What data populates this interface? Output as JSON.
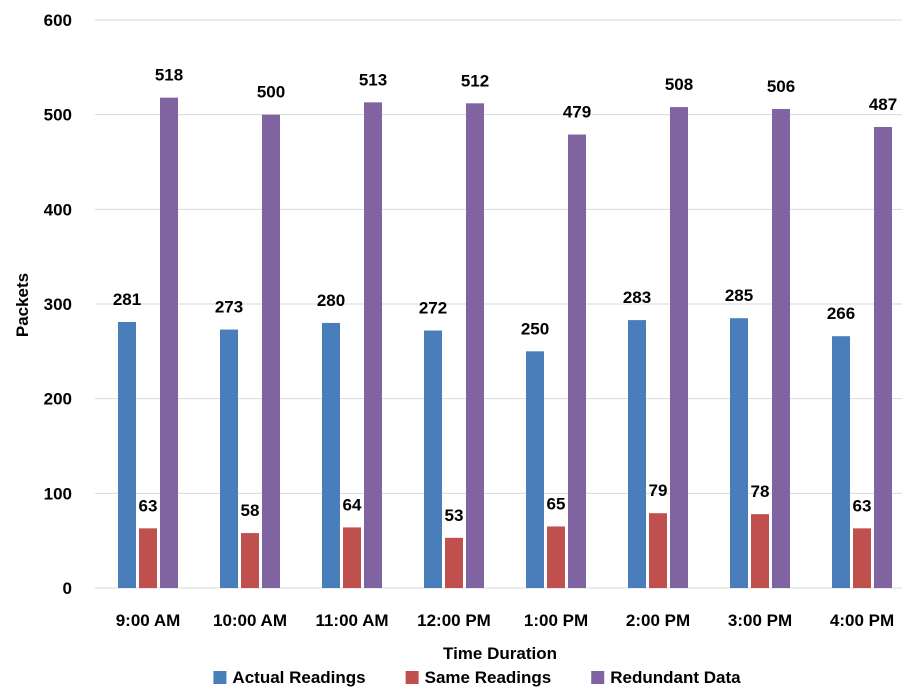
{
  "chart_data": {
    "type": "bar",
    "categories": [
      "9:00 AM",
      "10:00 AM",
      "11:00 AM",
      "12:00 PM",
      "1:00 PM",
      "2:00 PM",
      "3:00 PM",
      "4:00 PM"
    ],
    "series": [
      {
        "name": "Actual Readings",
        "color": "#4a7ebb",
        "values": [
          281,
          273,
          280,
          272,
          250,
          283,
          285,
          266
        ]
      },
      {
        "name": "Same Readings",
        "color": "#c0504d",
        "values": [
          63,
          58,
          64,
          53,
          65,
          79,
          78,
          63
        ]
      },
      {
        "name": "Redundant Data",
        "color": "#8064a2",
        "values": [
          518,
          500,
          513,
          512,
          479,
          508,
          506,
          487
        ]
      }
    ],
    "title": "",
    "xlabel": "Time Duration",
    "ylabel": "Packets",
    "ylim": [
      0,
      600
    ],
    "yticks": [
      0,
      100,
      200,
      300,
      400,
      500,
      600
    ],
    "grid": true,
    "legend": "bottom"
  }
}
